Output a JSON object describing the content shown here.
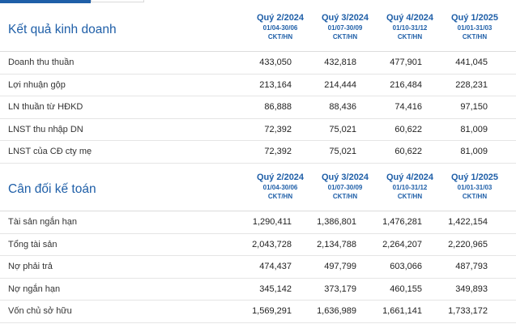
{
  "tabs": {
    "active": "",
    "inactive": ""
  },
  "quarters": [
    {
      "name": "Quý 2/2024",
      "range": "01/04-30/06",
      "src": "CKT/HN"
    },
    {
      "name": "Quý 3/2024",
      "range": "01/07-30/09",
      "src": "CKT/HN"
    },
    {
      "name": "Quý 4/2024",
      "range": "01/10-31/12",
      "src": "CKT/HN"
    },
    {
      "name": "Quý 1/2025",
      "range": "01/01-31/03",
      "src": "CKT/HN"
    }
  ],
  "income": {
    "title": "Kết quả kinh doanh",
    "rows": [
      {
        "label": "Doanh thu thuần",
        "values": [
          "433,050",
          "432,818",
          "477,901",
          "441,045"
        ]
      },
      {
        "label": "Lợi nhuận gộp",
        "values": [
          "213,164",
          "214,444",
          "216,484",
          "228,231"
        ]
      },
      {
        "label": "LN thuần từ HĐKD",
        "values": [
          "86,888",
          "88,436",
          "74,416",
          "97,150"
        ]
      },
      {
        "label": "LNST thu nhập DN",
        "values": [
          "72,392",
          "75,021",
          "60,622",
          "81,009"
        ]
      },
      {
        "label": "LNST của CĐ cty mẹ",
        "values": [
          "72,392",
          "75,021",
          "60,622",
          "81,009"
        ]
      }
    ]
  },
  "balance": {
    "title": "Cân đối kế toán",
    "rows": [
      {
        "label": "Tài sản ngắn hạn",
        "values": [
          "1,290,411",
          "1,386,801",
          "1,476,281",
          "1,422,154"
        ]
      },
      {
        "label": "Tổng tài sản",
        "values": [
          "2,043,728",
          "2,134,788",
          "2,264,207",
          "2,220,965"
        ]
      },
      {
        "label": "Nợ phải trả",
        "values": [
          "474,437",
          "497,799",
          "603,066",
          "487,793"
        ]
      },
      {
        "label": "Nợ ngắn hạn",
        "values": [
          "345,142",
          "373,179",
          "460,155",
          "349,893"
        ]
      },
      {
        "label": "Vốn chủ sở hữu",
        "values": [
          "1,569,291",
          "1,636,989",
          "1,661,141",
          "1,733,172"
        ]
      }
    ]
  }
}
